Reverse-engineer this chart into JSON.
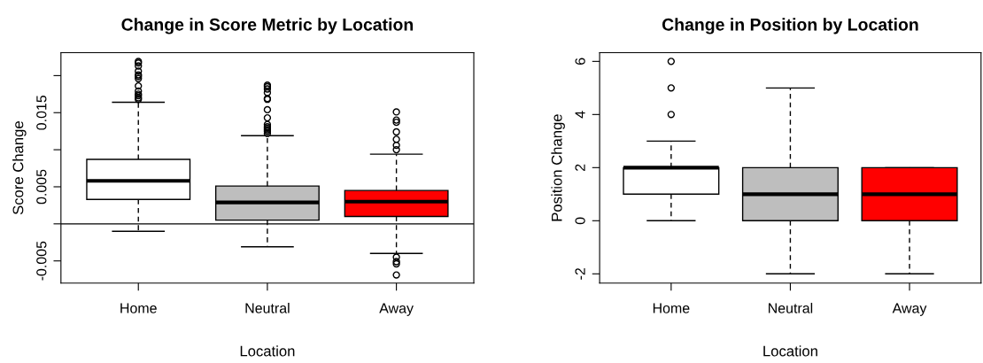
{
  "chart_data": [
    {
      "type": "box",
      "title": "Change in Score Metric by Location",
      "xlabel": "Location",
      "ylabel": "Score Change",
      "categories": [
        "Home",
        "Neutral",
        "Away"
      ],
      "colors": [
        "#ffffff",
        "#bebebe",
        "#ff0000"
      ],
      "boxes": [
        {
          "low": -0.001,
          "q1": 0.0033,
          "median": 0.0058,
          "q3": 0.0087,
          "high": 0.0164,
          "outliers": [
            0.0219,
            0.0217,
            0.0213,
            0.0206,
            0.0201,
            0.0199,
            0.0196,
            0.0186,
            0.0179,
            0.0175,
            0.0173,
            0.017,
            0.0168
          ]
        },
        {
          "low": -0.0031,
          "q1": 0.0005,
          "median": 0.0029,
          "q3": 0.0051,
          "high": 0.0119,
          "outliers": [
            0.0187,
            0.0185,
            0.0182,
            0.0177,
            0.0169,
            0.0168,
            0.0154,
            0.0143,
            0.0134,
            0.0131,
            0.0129,
            0.0127,
            0.0125,
            0.0122
          ]
        },
        {
          "low": -0.004,
          "q1": 0.001,
          "median": 0.003,
          "q3": 0.0045,
          "high": 0.0094,
          "outliers": [
            0.0151,
            0.014,
            0.0137,
            0.0124,
            0.0114,
            0.0106,
            0.01,
            -0.0045,
            -0.0051,
            -0.0054,
            -0.0069
          ]
        }
      ],
      "ylim": [
        -0.008,
        0.0231
      ],
      "yticks": [
        {
          "value": -0.005,
          "label": "-0.005"
        },
        {
          "value": 0,
          "label": null
        },
        {
          "value": 0.005,
          "label": "0.005"
        },
        {
          "value": 0.01,
          "label": null
        },
        {
          "value": 0.015,
          "label": "0.015"
        },
        {
          "value": 0.02,
          "label": null
        }
      ],
      "ref_lines": [
        {
          "axis": "y",
          "value": 0,
          "color": "#000000"
        }
      ],
      "grid": false
    },
    {
      "type": "box",
      "title": "Change in Position by Location",
      "xlabel": "Location",
      "ylabel": "Position Change",
      "categories": [
        "Home",
        "Neutral",
        "Away"
      ],
      "colors": [
        "#ffffff",
        "#bebebe",
        "#ff0000"
      ],
      "boxes": [
        {
          "low": 0,
          "q1": 1,
          "median": 2,
          "q3": 2,
          "high": 3,
          "outliers": [
            4,
            5,
            6
          ]
        },
        {
          "low": -2,
          "q1": 0,
          "median": 1,
          "q3": 2,
          "high": 5
        },
        {
          "low": -2,
          "q1": 0,
          "median": 1,
          "q3": 2,
          "high": 2
        }
      ],
      "ylim": [
        -2.35,
        6.33
      ],
      "yticks": [
        {
          "value": -2,
          "label": "-2"
        },
        0,
        2,
        4,
        6
      ],
      "grid": false
    }
  ]
}
